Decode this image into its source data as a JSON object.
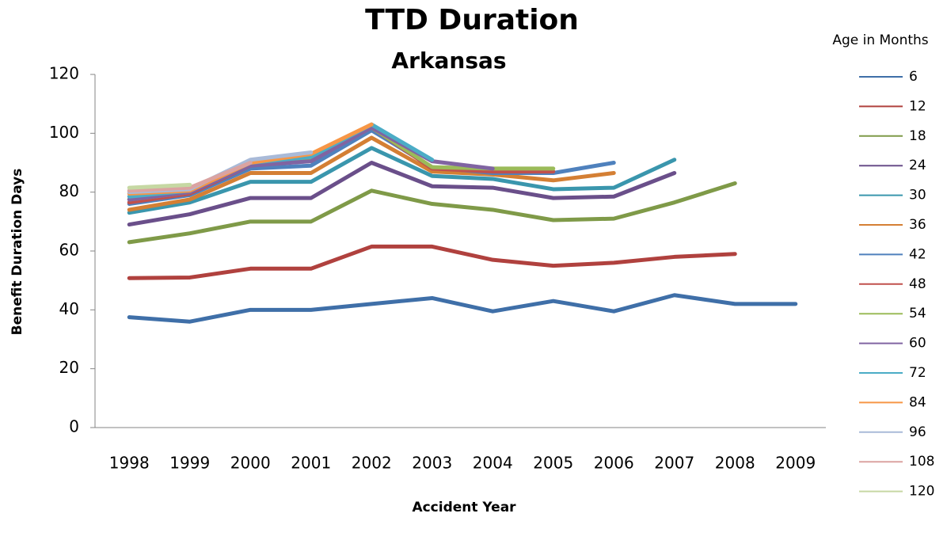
{
  "chart_data": {
    "type": "line",
    "title": "TTD Duration",
    "subtitle": "Arkansas",
    "x_label": "Accident Year",
    "y_label": "Benefit Duration Days",
    "legend_title": "Age in Months",
    "legend": "right",
    "categories": [
      "1998",
      "1999",
      "2000",
      "2001",
      "2002",
      "2003",
      "2004",
      "2005",
      "2006",
      "2007",
      "2008",
      "2009"
    ],
    "ylim": [
      0,
      120
    ],
    "yticks": [
      0,
      20,
      40,
      60,
      80,
      100,
      120
    ],
    "series": [
      {
        "name": "6",
        "color": "#3f6fa8",
        "values": [
          37.5,
          36,
          40,
          40,
          42,
          44,
          39.5,
          43,
          39.5,
          45,
          42,
          42
        ]
      },
      {
        "name": "12",
        "color": "#b0413e",
        "values": [
          50.8,
          51,
          54,
          54,
          61.5,
          61.5,
          57,
          55,
          56,
          58,
          59,
          null
        ]
      },
      {
        "name": "18",
        "color": "#7f9a48",
        "values": [
          63,
          66,
          70,
          70,
          80.5,
          76,
          74,
          70.5,
          71,
          76.5,
          83,
          null
        ]
      },
      {
        "name": "24",
        "color": "#6a4f8a",
        "values": [
          69,
          72.5,
          78,
          78,
          90,
          82,
          81.5,
          78,
          78.5,
          86.5,
          null,
          null
        ]
      },
      {
        "name": "30",
        "color": "#3a96ad",
        "values": [
          73,
          76.5,
          83.5,
          83.5,
          95,
          85.5,
          84.5,
          81,
          81.5,
          91,
          null,
          null
        ]
      },
      {
        "name": "36",
        "color": "#d47f34",
        "values": [
          74,
          77.5,
          86.5,
          86.5,
          98.5,
          87,
          86,
          84,
          86.5,
          null,
          null,
          null
        ]
      },
      {
        "name": "42",
        "color": "#4f81bd",
        "values": [
          76,
          79,
          88,
          89,
          101,
          88.5,
          86.5,
          86.5,
          90,
          null,
          null,
          null
        ]
      },
      {
        "name": "48",
        "color": "#c0504d",
        "values": [
          76.5,
          79.5,
          89,
          91.5,
          102,
          88,
          87,
          87,
          null,
          null,
          null,
          null
        ]
      },
      {
        "name": "54",
        "color": "#9bbb59",
        "values": [
          77.5,
          80,
          90,
          91.5,
          102,
          88.5,
          88,
          88,
          null,
          null,
          null,
          null
        ]
      },
      {
        "name": "60",
        "color": "#8064a2",
        "values": [
          77.5,
          80,
          89,
          90.5,
          102,
          90.5,
          88,
          null,
          null,
          null,
          null,
          null
        ]
      },
      {
        "name": "72",
        "color": "#4bacc6",
        "values": [
          78.5,
          80.5,
          90,
          92,
          103,
          91,
          null,
          null,
          null,
          null,
          null,
          null
        ]
      },
      {
        "name": "84",
        "color": "#f79646",
        "values": [
          79.5,
          80.5,
          90,
          93,
          103,
          null,
          null,
          null,
          null,
          null,
          null,
          null
        ]
      },
      {
        "name": "96",
        "color": "#a9bad8",
        "values": [
          80,
          81,
          91,
          93.5,
          null,
          null,
          null,
          null,
          null,
          null,
          null,
          null
        ]
      },
      {
        "name": "108",
        "color": "#dba3a1",
        "values": [
          80.5,
          81.5,
          90,
          null,
          null,
          null,
          null,
          null,
          null,
          null,
          null,
          null
        ]
      },
      {
        "name": "120",
        "color": "#c6d8a3",
        "values": [
          81.5,
          82.5,
          null,
          null,
          null,
          null,
          null,
          null,
          null,
          null,
          null,
          null
        ]
      }
    ]
  }
}
